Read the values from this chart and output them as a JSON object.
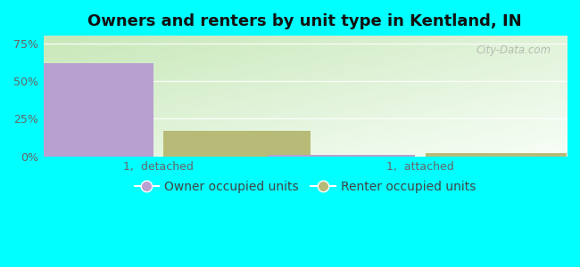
{
  "title": "Owners and renters by unit type in Kentland, IN",
  "categories": [
    "1,  detached",
    "1,  attached"
  ],
  "owner_values": [
    62,
    1
  ],
  "renter_values": [
    17,
    2
  ],
  "owner_color": "#b8a0d0",
  "renter_color": "#b8bb78",
  "yticks": [
    0,
    25,
    50,
    75
  ],
  "ytick_labels": [
    "0%",
    "25%",
    "50%",
    "75%"
  ],
  "ylim": [
    0,
    80
  ],
  "bar_width": 0.28,
  "title_fontsize": 13,
  "tick_fontsize": 9,
  "legend_fontsize": 10,
  "watermark_text": "City-Data.com",
  "owner_label": "Owner occupied units",
  "renter_label": "Renter occupied units",
  "outer_bg": "#00ffff",
  "bg_colors": [
    "#d6efcc",
    "#e8f8e8",
    "#f0faf5",
    "#f8fef8"
  ],
  "group_positions": [
    0.22,
    0.72
  ],
  "xlim": [
    0.0,
    1.0
  ]
}
